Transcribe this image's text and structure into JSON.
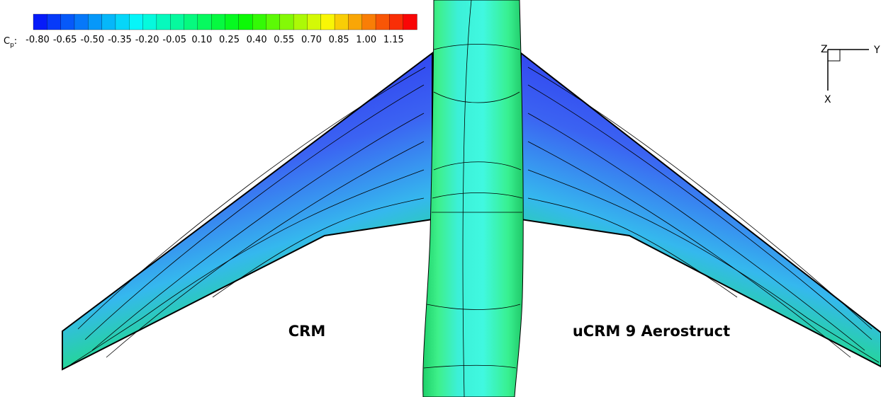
{
  "colorbar": {
    "label": "C",
    "label_subscript": "p",
    "label_suffix": ":",
    "ticks": [
      "-0.80",
      "-0.65",
      "-0.50",
      "-0.35",
      "-0.20",
      "-0.05",
      "0.10",
      "0.25",
      "0.40",
      "0.55",
      "0.70",
      "0.85",
      "1.00",
      "1.15"
    ]
  },
  "labels": {
    "left": "CRM",
    "right": "uCRM 9 Aerostruct"
  },
  "axes": {
    "z": "Z",
    "y": "Y",
    "x": "X"
  }
}
